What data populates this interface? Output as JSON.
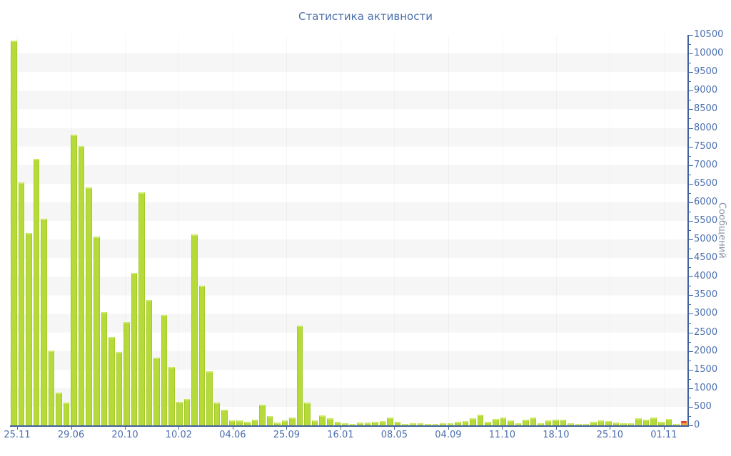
{
  "chart_title": "Статистика активности",
  "chart_data": {
    "type": "bar",
    "title": "Статистика активности",
    "xlabel": "",
    "ylabel": "Сообщений",
    "ylim": [
      0,
      10500
    ],
    "y_tick_step": 500,
    "y_minor_tick_step": 250,
    "grid": "horizontal-bands",
    "legend": "none",
    "y_tick_labels": [
      "0",
      "500",
      "1000",
      "1500",
      "2000",
      "2500",
      "3000",
      "3500",
      "4000",
      "4500",
      "5000",
      "5500",
      "6000",
      "6500",
      "7000",
      "7500",
      "8000",
      "8500",
      "9000",
      "9500",
      "10000",
      "10500"
    ],
    "x_tick_labels": [
      "25.11",
      "29.06",
      "20.10",
      "10.02",
      "04.06",
      "25.09",
      "16.01",
      "08.05",
      "04.09",
      "11.10",
      "18.10",
      "25.10",
      "01.11"
    ],
    "values": [
      10350,
      6530,
      5170,
      7170,
      5550,
      2010,
      880,
      620,
      7820,
      7510,
      6400,
      5080,
      3050,
      2380,
      1980,
      2780,
      4100,
      6270,
      3380,
      1820,
      2970,
      1570,
      640,
      710,
      5140,
      3760,
      1450,
      620,
      420,
      140,
      130,
      100,
      150,
      560,
      250,
      80,
      130,
      210,
      2690,
      620,
      140,
      270,
      190,
      100,
      60,
      40,
      80,
      80,
      100,
      120,
      210,
      100,
      40,
      60,
      60,
      20,
      30,
      60,
      50,
      100,
      120,
      200,
      280,
      100,
      180,
      210,
      135,
      60,
      150,
      210,
      60,
      135,
      150,
      150,
      60,
      20,
      30,
      100,
      135,
      115,
      80,
      60,
      60,
      190,
      150,
      210,
      90,
      170,
      40,
      120
    ],
    "highlight_last_bar": true,
    "colors": {
      "bar_fill": "#b6da3a",
      "bar_edge": "#a4cb28",
      "bar_top_edge": "#cdea69",
      "last_bar_fill": "#f6a832",
      "last_bar_top_edge": "#e5402d",
      "axis_line": "#41619f",
      "tick_label": "#4a6fad",
      "title_color": "#4a6fad",
      "y_title_color": "#8a94a8",
      "band_gray": "#f6f6f6"
    }
  }
}
